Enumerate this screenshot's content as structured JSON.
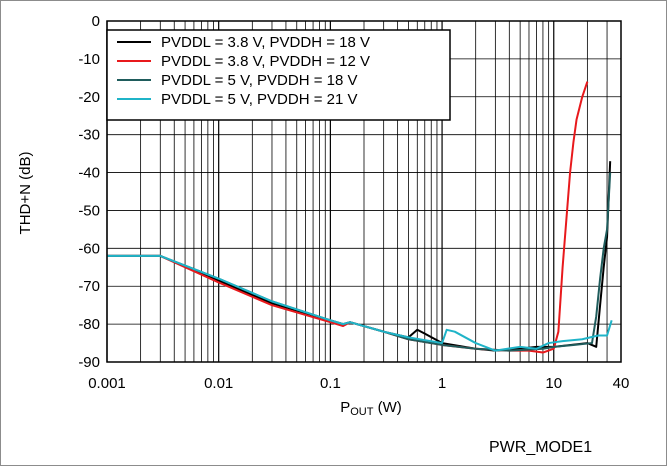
{
  "chart_data": {
    "type": "line",
    "xlabel_main": "P",
    "xlabel_sub": "OUT",
    "xlabel_unit": " (W)",
    "ylabel": "THD+N (dB)",
    "xscale": "log",
    "xlim": [
      0.001,
      40
    ],
    "ylim": [
      -90,
      0
    ],
    "grid": true,
    "legend_position": "top-left",
    "xticks": [
      {
        "v": 0.001,
        "label": "0.001"
      },
      {
        "v": 0.01,
        "label": "0.01"
      },
      {
        "v": 0.1,
        "label": "0.1"
      },
      {
        "v": 1,
        "label": "1"
      },
      {
        "v": 10,
        "label": "10"
      },
      {
        "v": 40,
        "label": "40"
      }
    ],
    "yticks": [
      {
        "v": 0,
        "label": "0"
      },
      {
        "v": -10,
        "label": "-10"
      },
      {
        "v": -20,
        "label": "-20"
      },
      {
        "v": -30,
        "label": "-30"
      },
      {
        "v": -40,
        "label": "-40"
      },
      {
        "v": -50,
        "label": "-50"
      },
      {
        "v": -60,
        "label": "-60"
      },
      {
        "v": -70,
        "label": "-70"
      },
      {
        "v": -80,
        "label": "-80"
      },
      {
        "v": -90,
        "label": "-90"
      }
    ],
    "series": [
      {
        "name": "PVDDL = 3.8 V, PVDDH = 18 V",
        "color": "#000000",
        "points": [
          [
            0.001,
            -62
          ],
          [
            0.003,
            -62
          ],
          [
            0.01,
            -68.5
          ],
          [
            0.03,
            -74.5
          ],
          [
            0.1,
            -79
          ],
          [
            0.13,
            -80
          ],
          [
            0.15,
            -79.5
          ],
          [
            0.3,
            -82
          ],
          [
            0.5,
            -83.5
          ],
          [
            0.6,
            -81.5
          ],
          [
            0.7,
            -82.5
          ],
          [
            1,
            -85
          ],
          [
            2,
            -86.5
          ],
          [
            3,
            -87
          ],
          [
            5,
            -86.5
          ],
          [
            7,
            -86
          ],
          [
            10,
            -86
          ],
          [
            20,
            -85
          ],
          [
            24,
            -86
          ],
          [
            26,
            -75
          ],
          [
            28,
            -65
          ],
          [
            30,
            -57
          ],
          [
            32,
            -37
          ]
        ]
      },
      {
        "name": "PVDDL = 3.8 V, PVDDH = 12 V",
        "color": "#e8191c",
        "points": [
          [
            0.001,
            -62
          ],
          [
            0.003,
            -62
          ],
          [
            0.01,
            -69
          ],
          [
            0.03,
            -75
          ],
          [
            0.1,
            -79.5
          ],
          [
            0.13,
            -80.5
          ],
          [
            0.15,
            -79.5
          ],
          [
            0.3,
            -82
          ],
          [
            0.5,
            -84
          ],
          [
            1,
            -85.5
          ],
          [
            2,
            -86.5
          ],
          [
            4,
            -87
          ],
          [
            6,
            -87
          ],
          [
            8,
            -87.5
          ],
          [
            10,
            -86.5
          ],
          [
            11,
            -82
          ],
          [
            12,
            -65
          ],
          [
            13,
            -52
          ],
          [
            14,
            -40
          ],
          [
            15,
            -32
          ],
          [
            16,
            -26
          ],
          [
            18,
            -20
          ],
          [
            20,
            -16
          ]
        ]
      },
      {
        "name": "PVDDL = 5 V, PVDDH = 18 V",
        "color": "#1f5c5c",
        "points": [
          [
            0.001,
            -62
          ],
          [
            0.003,
            -62
          ],
          [
            0.01,
            -68
          ],
          [
            0.03,
            -74
          ],
          [
            0.1,
            -79
          ],
          [
            0.13,
            -80
          ],
          [
            0.15,
            -79.5
          ],
          [
            0.3,
            -82
          ],
          [
            0.5,
            -84
          ],
          [
            1,
            -85.5
          ],
          [
            2,
            -86.5
          ],
          [
            4,
            -87
          ],
          [
            8,
            -86.5
          ],
          [
            10,
            -86
          ],
          [
            15,
            -85.5
          ],
          [
            22,
            -85
          ],
          [
            24,
            -78
          ],
          [
            26,
            -68
          ],
          [
            28,
            -60
          ],
          [
            30,
            -55
          ],
          [
            32,
            -40
          ]
        ]
      },
      {
        "name": "PVDDL = 5 V, PVDDH = 21 V",
        "color": "#1fb4c8",
        "points": [
          [
            0.001,
            -62
          ],
          [
            0.003,
            -62
          ],
          [
            0.01,
            -68
          ],
          [
            0.03,
            -74
          ],
          [
            0.1,
            -79
          ],
          [
            0.13,
            -80
          ],
          [
            0.15,
            -79.5
          ],
          [
            0.3,
            -82
          ],
          [
            0.5,
            -83.5
          ],
          [
            1,
            -85
          ],
          [
            1.1,
            -81.5
          ],
          [
            1.3,
            -82
          ],
          [
            2,
            -85
          ],
          [
            3,
            -87
          ],
          [
            5,
            -86
          ],
          [
            7,
            -86.5
          ],
          [
            9,
            -85
          ],
          [
            12,
            -84.5
          ],
          [
            18,
            -84
          ],
          [
            25,
            -83
          ],
          [
            30,
            -83
          ],
          [
            33,
            -79
          ]
        ]
      }
    ]
  },
  "footer_label": "PWR_MODE1"
}
